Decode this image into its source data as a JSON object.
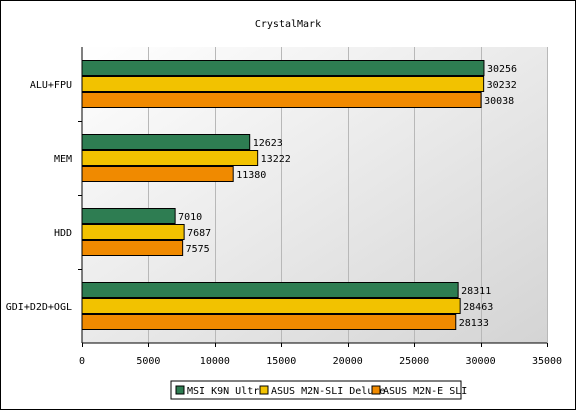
{
  "chart_data": {
    "type": "bar",
    "orientation": "horizontal",
    "title": "CrystalMark",
    "categories": [
      "ALU+FPU",
      "MEM",
      "HDD",
      "GDI+D2D+OGL"
    ],
    "series": [
      {
        "name": "MSI K9N Ultra",
        "color": "#2e7d52",
        "values": [
          30256,
          12623,
          7010,
          28311
        ]
      },
      {
        "name": "ASUS M2N-SLI Deluxe",
        "color": "#f2c200",
        "values": [
          30232,
          13222,
          7687,
          28463
        ]
      },
      {
        "name": "ASUS M2N-E SLI",
        "color": "#f08a00",
        "values": [
          30038,
          11380,
          7575,
          28133
        ]
      }
    ],
    "xlim": [
      0,
      35000
    ],
    "x_ticks": [
      0,
      5000,
      10000,
      15000,
      20000,
      25000,
      30000,
      35000
    ],
    "grid": true,
    "legend_position": "bottom"
  }
}
